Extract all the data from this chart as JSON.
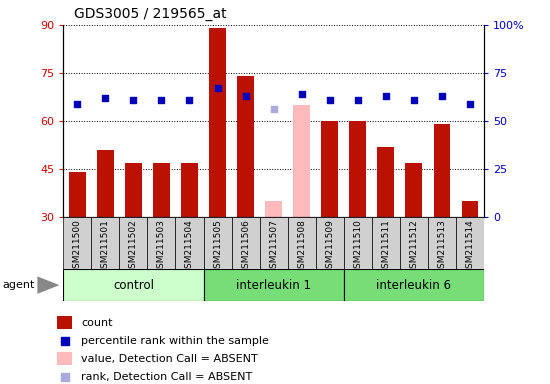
{
  "title": "GDS3005 / 219565_at",
  "samples": [
    "GSM211500",
    "GSM211501",
    "GSM211502",
    "GSM211503",
    "GSM211504",
    "GSM211505",
    "GSM211506",
    "GSM211507",
    "GSM211508",
    "GSM211509",
    "GSM211510",
    "GSM211511",
    "GSM211512",
    "GSM211513",
    "GSM211514"
  ],
  "count_values": [
    44,
    51,
    47,
    47,
    47,
    89,
    74,
    null,
    null,
    60,
    60,
    52,
    47,
    59,
    35
  ],
  "count_absent": [
    null,
    null,
    null,
    null,
    null,
    null,
    null,
    35,
    65,
    null,
    null,
    null,
    null,
    null,
    null
  ],
  "percentile_values": [
    59,
    62,
    61,
    61,
    61,
    67,
    63,
    null,
    64,
    61,
    61,
    63,
    61,
    63,
    59
  ],
  "percentile_absent": [
    null,
    null,
    null,
    null,
    null,
    null,
    null,
    56,
    null,
    null,
    null,
    null,
    null,
    null,
    null
  ],
  "ylim_left": [
    30,
    90
  ],
  "ylim_right": [
    0,
    100
  ],
  "yticks_left": [
    30,
    45,
    60,
    75,
    90
  ],
  "yticks_right": [
    0,
    25,
    50,
    75,
    100
  ],
  "groups": [
    {
      "label": "control",
      "start": 0,
      "end": 5,
      "color": "#ccffcc"
    },
    {
      "label": "interleukin 1",
      "start": 5,
      "end": 10,
      "color": "#77dd77"
    },
    {
      "label": "interleukin 6",
      "start": 10,
      "end": 15,
      "color": "#77dd77"
    }
  ],
  "bar_color": "#bb1100",
  "bar_absent_color": "#ffbbbb",
  "dot_color": "#0000bb",
  "dot_absent_color": "#aaaadd",
  "cell_bg_color": "#d0d0d0",
  "plot_bg": "#ffffff",
  "ylabel_left_color": "#cc0000",
  "ylabel_right_color": "#0000cc",
  "legend_items": [
    {
      "color": "#bb1100",
      "type": "rect",
      "label": "count"
    },
    {
      "color": "#0000bb",
      "type": "square",
      "label": "percentile rank within the sample"
    },
    {
      "color": "#ffbbbb",
      "type": "rect",
      "label": "value, Detection Call = ABSENT"
    },
    {
      "color": "#aaaadd",
      "type": "square",
      "label": "rank, Detection Call = ABSENT"
    }
  ]
}
